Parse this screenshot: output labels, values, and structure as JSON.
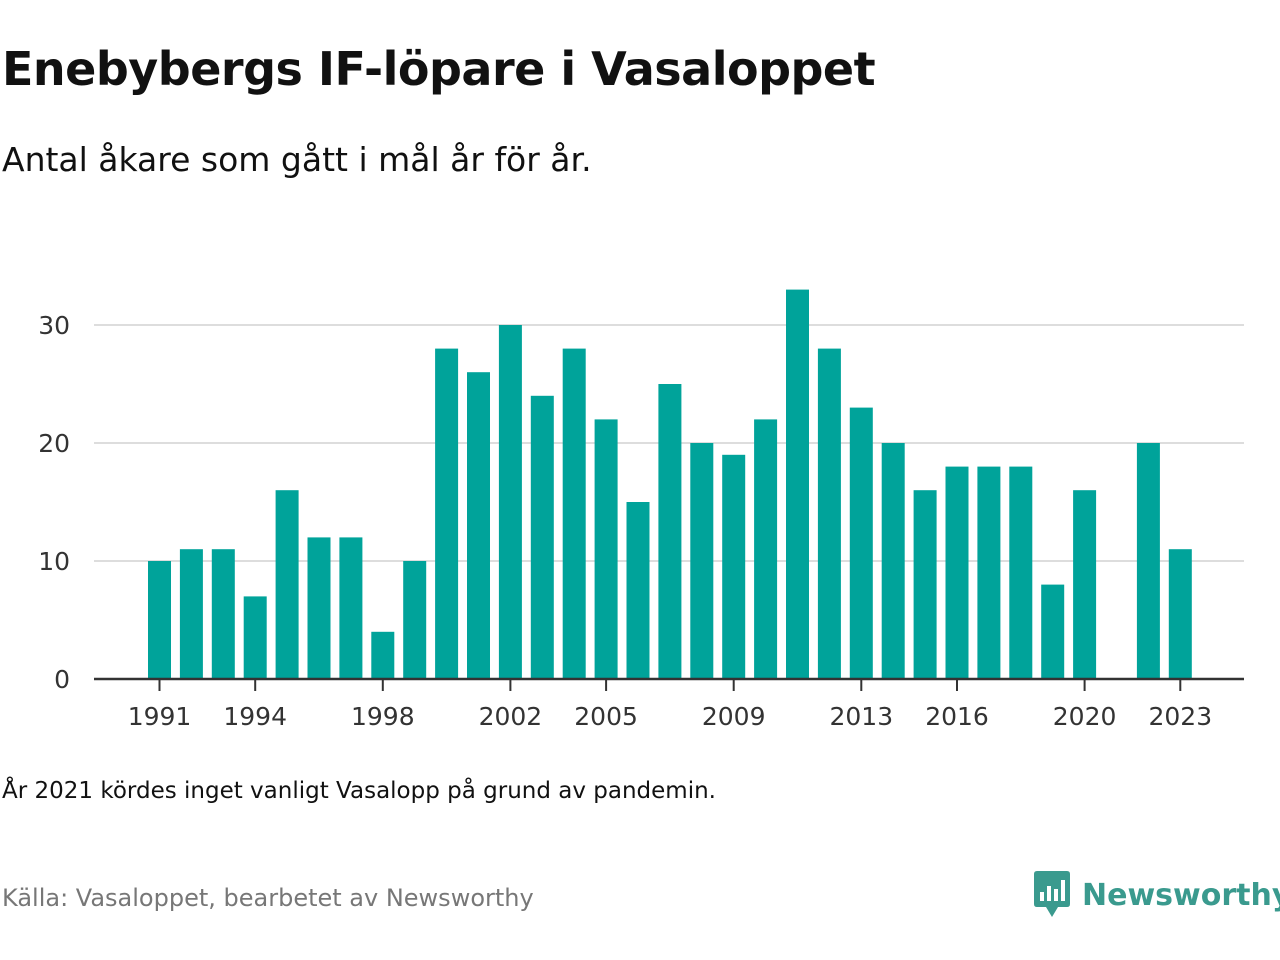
{
  "title": "Enebybergs IF-löpare i Vasaloppet",
  "subtitle": "Antal åkare som gått i mål år för år.",
  "note": "År 2021 kördes inget vanligt Vasalopp på grund av pandemin.",
  "source": "Källa: Vasaloppet, bearbetet av Newsworthy",
  "logo": {
    "text": "Newsworthy",
    "icon": "newsworthy-logo-icon",
    "color": "#3a9a8e"
  },
  "colors": {
    "bar": "#00a39a",
    "grid": "#dddddd",
    "axis": "#333333"
  },
  "chart_data": {
    "type": "bar",
    "categories": [
      1991,
      1992,
      1993,
      1994,
      1995,
      1996,
      1997,
      1998,
      1999,
      2000,
      2001,
      2002,
      2003,
      2004,
      2005,
      2006,
      2007,
      2008,
      2009,
      2010,
      2011,
      2012,
      2013,
      2014,
      2015,
      2016,
      2017,
      2018,
      2019,
      2020,
      2021,
      2022,
      2023
    ],
    "values": [
      10,
      11,
      11,
      7,
      16,
      12,
      12,
      4,
      10,
      28,
      26,
      30,
      24,
      28,
      22,
      15,
      25,
      20,
      19,
      22,
      33,
      28,
      23,
      20,
      16,
      18,
      18,
      18,
      8,
      16,
      null,
      20,
      11
    ],
    "x_tick_labels": [
      "1991",
      "1994",
      "1998",
      "2002",
      "2005",
      "2009",
      "2013",
      "2016",
      "2020",
      "2023"
    ],
    "y_ticks": [
      0,
      10,
      20,
      30
    ],
    "ylim": [
      0,
      34
    ],
    "xlabel": "",
    "ylabel": "",
    "grid": true
  }
}
